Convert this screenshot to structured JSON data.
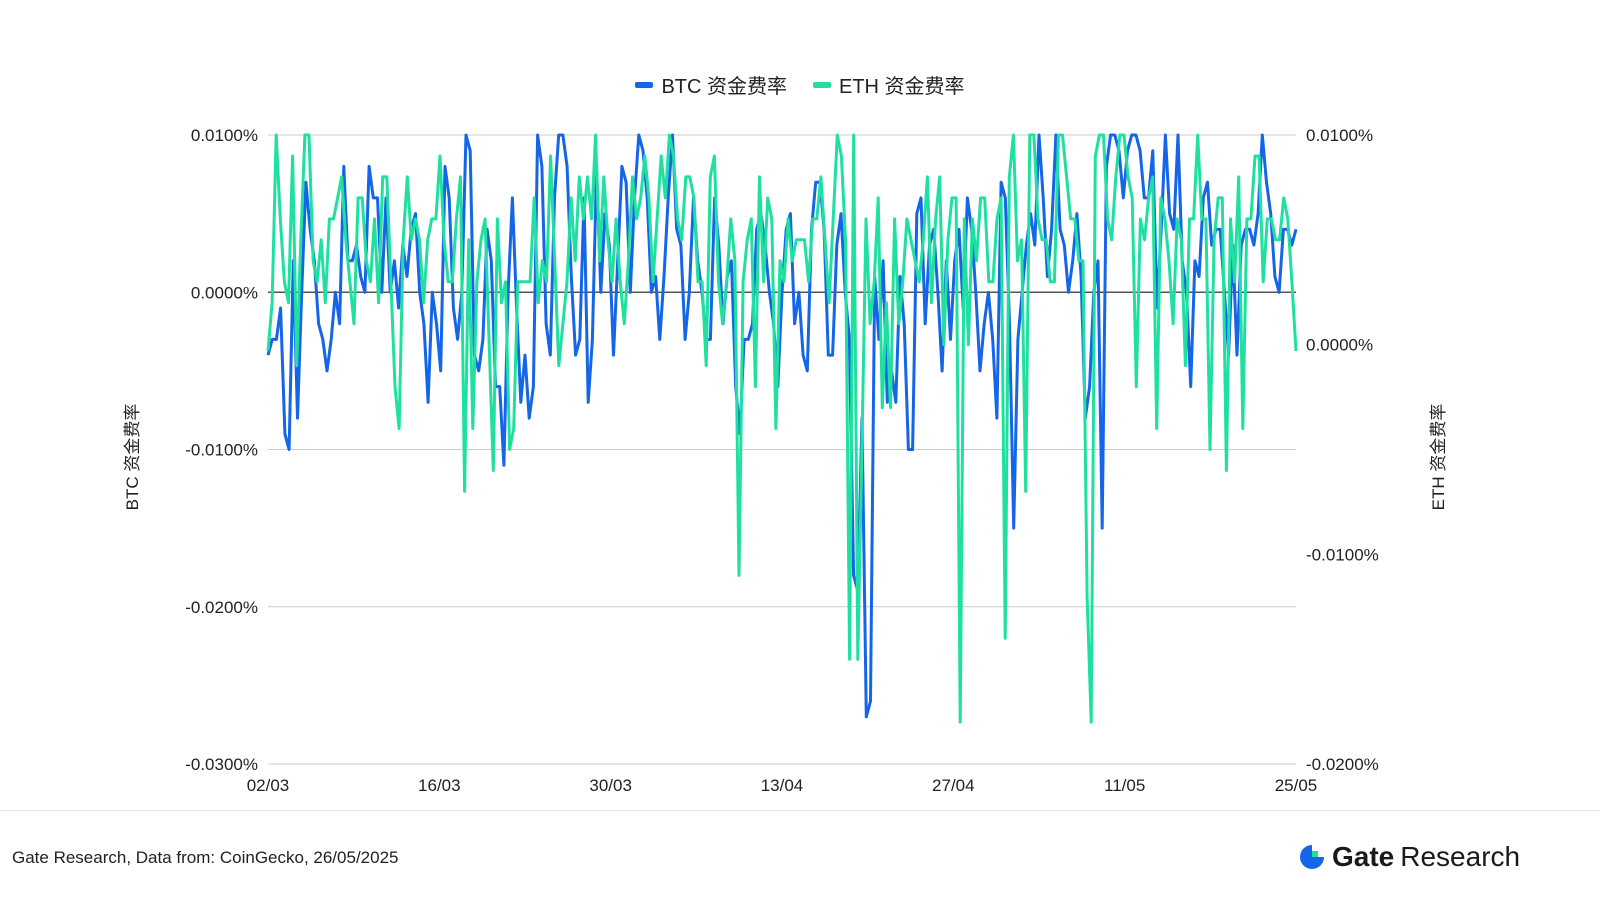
{
  "legend": {
    "btc": "BTC 资金费率",
    "eth": "ETH  资金费率"
  },
  "footer": {
    "source": "Gate Research, Data from: CoinGecko, 26/05/2025",
    "logo_brand": "Gate",
    "logo_sub": "Research"
  },
  "colors": {
    "btc": "#1565e8",
    "eth": "#1fe0a0",
    "grid": "#cccccc",
    "zero_line": "#555555",
    "logo_mark": "#1565e8"
  },
  "chart_data": {
    "type": "line",
    "left_axis_label": "BTC  资金费率",
    "right_axis_label": "ETH  资金费率",
    "left_ticks": [
      "0.0100%",
      "0.0000%",
      "-0.0100%",
      "-0.0200%",
      "-0.0300%"
    ],
    "right_ticks": [
      "0.0100%",
      "0.0000%",
      "-0.0100%",
      "-0.0200%"
    ],
    "x_ticks": [
      "02/03",
      "16/03",
      "30/03",
      "13/04",
      "27/04",
      "11/05",
      "25/05"
    ],
    "left_ylim": [
      -0.03,
      0.01
    ],
    "right_ylim": [
      -0.02,
      0.01
    ],
    "x_range": [
      "02/03",
      "25/05"
    ],
    "series": [
      {
        "name": "BTC 资金费率",
        "axis": "left",
        "values": [
          -0.004,
          -0.003,
          -0.003,
          -0.001,
          -0.009,
          -0.01,
          0.002,
          -0.008,
          0.0,
          0.007,
          0.004,
          0.002,
          -0.002,
          -0.003,
          -0.005,
          -0.003,
          0.0,
          -0.002,
          0.008,
          0.002,
          0.002,
          0.003,
          0.001,
          0.0,
          0.008,
          0.006,
          0.006,
          0.0,
          0.006,
          0.0,
          0.002,
          -0.001,
          0.003,
          0.001,
          0.004,
          0.005,
          0.0,
          -0.002,
          -0.007,
          0.0,
          -0.002,
          -0.005,
          0.008,
          0.006,
          -0.001,
          -0.003,
          0.0,
          0.01,
          0.009,
          -0.004,
          -0.005,
          -0.003,
          0.004,
          0.002,
          -0.006,
          -0.006,
          -0.011,
          0.0,
          0.006,
          -0.001,
          -0.007,
          -0.004,
          -0.008,
          -0.006,
          0.01,
          0.008,
          -0.002,
          -0.004,
          0.006,
          0.01,
          0.01,
          0.008,
          0.001,
          -0.004,
          -0.003,
          0.006,
          -0.007,
          -0.003,
          0.008,
          0.0,
          0.005,
          0.003,
          -0.004,
          0.002,
          0.008,
          0.007,
          0.0,
          0.006,
          0.01,
          0.009,
          0.006,
          0.0,
          0.001,
          -0.003,
          0.001,
          0.006,
          0.01,
          0.004,
          0.003,
          -0.003,
          0.0,
          0.006,
          0.002,
          0.0,
          -0.003,
          -0.003,
          0.006,
          0.003,
          -0.002,
          0.001,
          0.002,
          -0.006,
          -0.009,
          -0.003,
          -0.003,
          -0.002,
          0.004,
          0.005,
          0.003,
          0.0,
          -0.002,
          -0.006,
          0.0,
          0.004,
          0.005,
          -0.002,
          0.0,
          -0.004,
          -0.005,
          0.004,
          0.007,
          0.007,
          0.004,
          -0.004,
          -0.004,
          0.003,
          0.005,
          0.0,
          -0.003,
          -0.018,
          -0.019,
          -0.008,
          -0.027,
          -0.026,
          0.001,
          -0.003,
          0.002,
          -0.007,
          -0.005,
          -0.007,
          0.001,
          -0.002,
          -0.01,
          -0.01,
          0.005,
          0.006,
          -0.002,
          0.003,
          0.004,
          0.0,
          -0.005,
          0.002,
          -0.003,
          0.002,
          0.004,
          -0.001,
          0.006,
          0.004,
          0.0,
          -0.005,
          -0.002,
          0.0,
          -0.003,
          -0.008,
          0.007,
          0.006,
          -0.002,
          -0.015,
          -0.003,
          0.0,
          0.003,
          0.005,
          0.003,
          0.01,
          0.006,
          0.001,
          0.004,
          0.01,
          0.004,
          0.003,
          0.0,
          0.002,
          0.005,
          0.001,
          -0.008,
          -0.006,
          0.0,
          0.002,
          -0.015,
          0.008,
          0.01,
          0.01,
          0.009,
          0.006,
          0.009,
          0.01,
          0.01,
          0.009,
          0.006,
          0.006,
          0.009,
          -0.001,
          0.004,
          0.01,
          0.005,
          0.004,
          0.01,
          0.002,
          0.0,
          -0.006,
          0.002,
          0.001,
          0.006,
          0.007,
          0.003,
          0.004,
          0.004,
          0.0,
          -0.004,
          0.003,
          -0.004,
          0.003,
          0.004,
          0.004,
          0.003,
          0.005,
          0.01,
          0.007,
          0.005,
          0.001,
          0.0,
          0.004,
          0.004,
          0.003,
          0.004
        ],
        "value_count_note": ""
      },
      {
        "name": "ETH  资金费率",
        "axis": "right",
        "values": [
          -0.0003,
          0.002,
          0.01,
          0.006,
          0.003,
          0.002,
          0.009,
          -0.001,
          0.005,
          0.01,
          0.01,
          0.004,
          0.003,
          0.005,
          0.002,
          0.006,
          0.006,
          0.007,
          0.008,
          0.005,
          0.003,
          0.001,
          0.007,
          0.007,
          0.004,
          0.003,
          0.006,
          0.002,
          0.008,
          0.008,
          0.003,
          -0.002,
          -0.004,
          0.005,
          0.008,
          0.005,
          0.006,
          0.005,
          0.002,
          0.005,
          0.006,
          0.006,
          0.009,
          0.005,
          0.003,
          0.003,
          0.006,
          0.008,
          -0.007,
          0.005,
          -0.004,
          0.003,
          0.005,
          0.006,
          0.0,
          -0.006,
          0.006,
          0.002,
          0.003,
          -0.005,
          -0.004,
          0.003,
          0.003,
          0.003,
          0.003,
          0.007,
          0.002,
          0.004,
          0.003,
          0.009,
          0.004,
          -0.001,
          0.001,
          0.003,
          0.007,
          0.004,
          0.008,
          0.006,
          0.008,
          0.006,
          0.01,
          0.004,
          0.008,
          0.005,
          0.003,
          0.006,
          0.003,
          0.001,
          0.004,
          0.008,
          0.006,
          0.007,
          0.009,
          0.007,
          0.003,
          0.006,
          0.009,
          0.007,
          0.01,
          0.009,
          0.006,
          0.005,
          0.008,
          0.008,
          0.007,
          0.003,
          0.003,
          -0.001,
          0.008,
          0.009,
          0.003,
          0.001,
          0.003,
          0.006,
          0.004,
          -0.011,
          0.003,
          0.005,
          0.006,
          -0.002,
          0.008,
          0.003,
          0.007,
          0.006,
          -0.004,
          0.004,
          0.003,
          0.006,
          0.004,
          0.005,
          0.005,
          0.005,
          0.003,
          0.006,
          0.006,
          0.008,
          0.005,
          0.002,
          0.006,
          0.01,
          0.009,
          0.005,
          -0.015,
          0.01,
          -0.015,
          -0.005,
          0.006,
          0.001,
          0.003,
          0.007,
          -0.003,
          0.002,
          -0.003,
          0.006,
          0.001,
          0.003,
          0.006,
          0.005,
          0.004,
          0.003,
          0.005,
          0.008,
          0.002,
          0.006,
          0.008,
          0.0,
          0.005,
          0.007,
          0.007,
          -0.018,
          0.006,
          0.0,
          0.006,
          0.004,
          0.007,
          0.007,
          0.003,
          0.003,
          0.006,
          0.007,
          -0.014,
          0.008,
          0.01,
          0.004,
          0.005,
          -0.007,
          0.01,
          0.01,
          0.006,
          0.005,
          0.005,
          0.003,
          0.003,
          0.01,
          0.01,
          0.008,
          0.006,
          0.006,
          0.004,
          0.004,
          -0.012,
          -0.018,
          0.009,
          0.01,
          0.01,
          0.006,
          0.005,
          0.008,
          0.01,
          0.01,
          0.008,
          0.007,
          -0.002,
          0.006,
          0.005,
          0.007,
          0.008,
          -0.004,
          0.007,
          0.006,
          0.004,
          0.001,
          0.006,
          0.005,
          -0.001,
          0.006,
          0.006,
          0.01,
          0.006,
          0.006,
          -0.005,
          0.005,
          0.007,
          0.007,
          -0.006,
          0.006,
          0.003,
          0.008,
          -0.004,
          0.006,
          0.006,
          0.009,
          0.009,
          0.003,
          0.006,
          0.006,
          0.005,
          0.005,
          0.007,
          0.006,
          0.003,
          -0.0003
        ]
      }
    ]
  }
}
